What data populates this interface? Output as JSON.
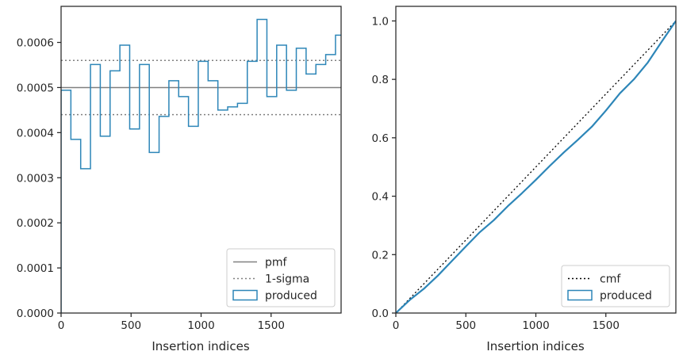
{
  "chart_data": [
    {
      "type": "step",
      "xlabel": "Insertion indices",
      "ylabel": "",
      "xlim": [
        0,
        2000
      ],
      "ylim": [
        0,
        0.00068
      ],
      "xticks": [
        0,
        500,
        1000,
        1500
      ],
      "xtick_labels": [
        "0",
        "500",
        "1000",
        "1500"
      ],
      "yticks": [
        0,
        0.0001,
        0.0002,
        0.0003,
        0.0004,
        0.0005,
        0.0006
      ],
      "ytick_labels": [
        "0.0000",
        "0.0001",
        "0.0002",
        "0.0003",
        "0.0004",
        "0.0005",
        "0.0006"
      ],
      "bin_edges": [
        0,
        70,
        140,
        210,
        280,
        350,
        420,
        490,
        560,
        630,
        700,
        770,
        840,
        910,
        980,
        1050,
        1120,
        1190,
        1260,
        1330,
        1400,
        1470,
        1540,
        1610,
        1680,
        1750,
        1820,
        1890,
        1960,
        2030
      ],
      "hist_values": [
        0.000494,
        0.000385,
        0.00032,
        0.000551,
        0.000392,
        0.000537,
        0.000594,
        0.000408,
        0.000551,
        0.000356,
        0.000436,
        0.000515,
        0.00048,
        0.000414,
        0.000558,
        0.000515,
        0.00045,
        0.000457,
        0.000465,
        0.000558,
        0.000651,
        0.00048,
        0.000594,
        0.000494,
        0.000587,
        0.00053,
        0.000551,
        0.000573,
        0.000616
      ],
      "pmf": 0.0005,
      "sigma_band": [
        0.00044,
        0.00056
      ],
      "legend": {
        "position": "lower right",
        "entries": [
          {
            "label": "pmf",
            "style": "solid",
            "color": "#808080"
          },
          {
            "label": "1-sigma",
            "style": "dotted",
            "color": "#808080"
          },
          {
            "label": "produced",
            "style": "step",
            "color": "#2d86b8"
          }
        ]
      }
    },
    {
      "type": "line",
      "xlabel": "Insertion indices",
      "ylabel": "",
      "xlim": [
        0,
        2000
      ],
      "ylim": [
        0,
        1.05
      ],
      "xticks": [
        0,
        500,
        1000,
        1500
      ],
      "xtick_labels": [
        "0",
        "500",
        "1000",
        "1500"
      ],
      "yticks": [
        0,
        0.2,
        0.4,
        0.6,
        0.8,
        1.0
      ],
      "ytick_labels": [
        "0.0",
        "0.2",
        "0.4",
        "0.6",
        "0.8",
        "1.0"
      ],
      "cmf_line": {
        "x": [
          0,
          2000
        ],
        "y": [
          0,
          1.0
        ]
      },
      "produced_cdf": {
        "x": [
          0,
          100,
          200,
          300,
          400,
          500,
          600,
          700,
          800,
          900,
          1000,
          1100,
          1200,
          1300,
          1400,
          1500,
          1600,
          1700,
          1800,
          1900,
          2000
        ],
        "y": [
          0,
          0.045,
          0.083,
          0.128,
          0.178,
          0.228,
          0.277,
          0.318,
          0.366,
          0.41,
          0.456,
          0.504,
          0.55,
          0.593,
          0.638,
          0.693,
          0.752,
          0.8,
          0.858,
          0.93,
          1.0
        ]
      },
      "legend": {
        "position": "lower right",
        "entries": [
          {
            "label": "cmf",
            "style": "dotted",
            "color": "#000000"
          },
          {
            "label": "produced",
            "style": "step",
            "color": "#2d86b8"
          }
        ]
      }
    }
  ]
}
